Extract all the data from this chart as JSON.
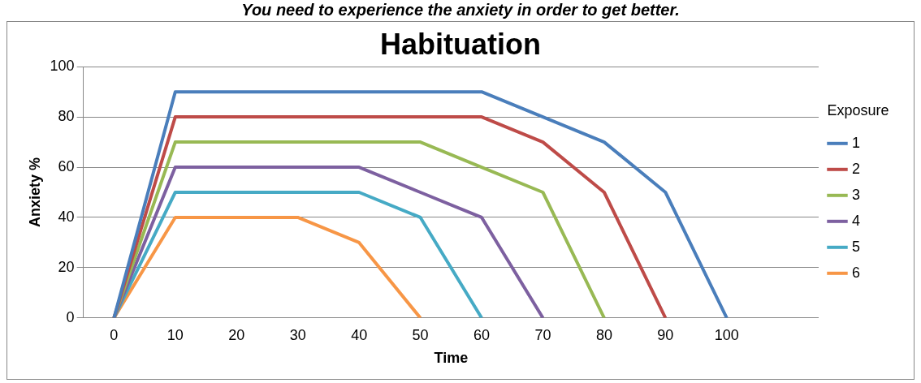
{
  "chart_data": {
    "type": "line",
    "title": "Habituation",
    "subtitle": "You need to experience the anxiety in order to get better.",
    "xlabel": "Time",
    "ylabel": "Anxiety %",
    "legend_title": "Exposure",
    "categories": [
      "0",
      "10",
      "20",
      "30",
      "40",
      "50",
      "60",
      "70",
      "80",
      "90",
      "100",
      null
    ],
    "series": [
      {
        "name": "1",
        "color": "#4a7ebb",
        "values": [
          0,
          90,
          90,
          90,
          90,
          90,
          90,
          80,
          70,
          50,
          0,
          null
        ]
      },
      {
        "name": "2",
        "color": "#be4b48",
        "values": [
          0,
          80,
          80,
          80,
          80,
          80,
          80,
          70,
          50,
          0,
          null,
          null
        ]
      },
      {
        "name": "3",
        "color": "#98b954",
        "values": [
          0,
          70,
          70,
          70,
          70,
          70,
          60,
          50,
          0,
          null,
          null,
          null
        ]
      },
      {
        "name": "4",
        "color": "#7d60a0",
        "values": [
          0,
          60,
          60,
          60,
          60,
          50,
          40,
          0,
          null,
          null,
          null,
          null
        ]
      },
      {
        "name": "5",
        "color": "#46aac5",
        "values": [
          0,
          50,
          50,
          50,
          50,
          40,
          0,
          null,
          null,
          null,
          null,
          null
        ]
      },
      {
        "name": "6",
        "color": "#f79646",
        "values": [
          0,
          40,
          40,
          40,
          30,
          0,
          null,
          null,
          null,
          null,
          null,
          null
        ]
      }
    ],
    "ylim": [
      0,
      100
    ],
    "yticks": [
      0,
      20,
      40,
      60,
      80,
      100
    ],
    "grid": "y",
    "legend": "right",
    "marker": "none"
  }
}
